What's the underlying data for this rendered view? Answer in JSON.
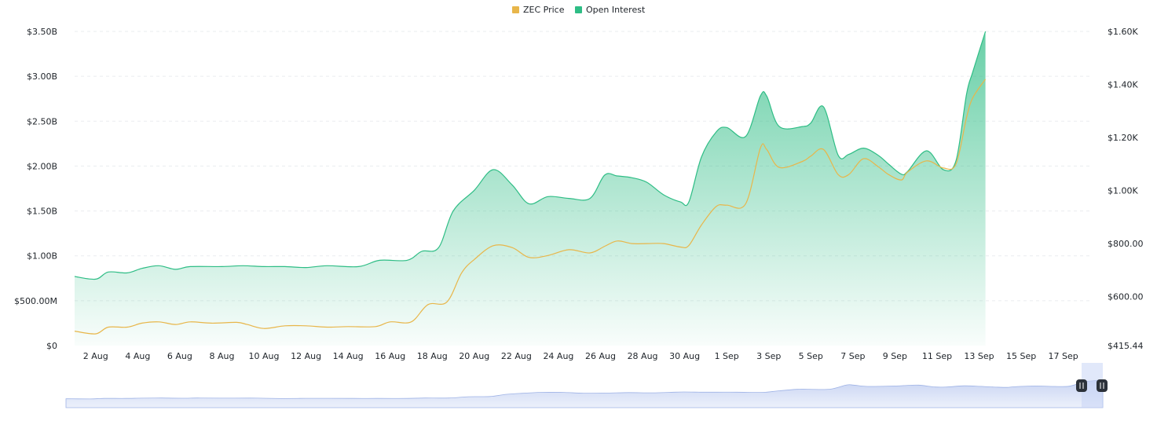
{
  "chart_data": {
    "type": "area",
    "legend": {
      "placement": "top-center",
      "items": [
        {
          "label": "ZEC Price",
          "color": "#e8b64a"
        },
        {
          "label": "Open Interest",
          "color": "#2ebd85"
        }
      ]
    },
    "x_labels": [
      "2 Aug",
      "4 Aug",
      "6 Aug",
      "8 Aug",
      "10 Aug",
      "12 Aug",
      "14 Aug",
      "16 Aug",
      "18 Aug",
      "20 Aug",
      "22 Aug",
      "24 Aug",
      "26 Aug",
      "28 Aug",
      "30 Aug",
      "1 Sep",
      "3 Sep",
      "5 Sep",
      "7 Sep",
      "9 Sep",
      "11 Sep",
      "13 Sep",
      "15 Sep",
      "17 Sep"
    ],
    "y_left": {
      "ticks": [
        "$0",
        "$500.00M",
        "$1.00B",
        "$1.50B",
        "$2.00B",
        "$2.50B",
        "$3.00B",
        "$3.50B"
      ],
      "range": [
        0,
        3.5
      ],
      "unit": "B"
    },
    "y_right": {
      "ticks": [
        "$415.44",
        "$600.00",
        "$800.00",
        "$1.00K",
        "$1.20K",
        "$1.40K",
        "$1.60K"
      ],
      "tick_values": [
        415.44,
        600,
        800,
        1000,
        1200,
        1400,
        1600
      ],
      "range": [
        415.44,
        1600
      ]
    },
    "grid": true,
    "series": [
      {
        "name": "Open Interest",
        "axis": "left",
        "color": "#2ebd85",
        "points": [
          [
            0,
            0.77
          ],
          [
            1,
            0.74
          ],
          [
            1.6,
            0.82
          ],
          [
            2.5,
            0.81
          ],
          [
            3.2,
            0.86
          ],
          [
            4,
            0.89
          ],
          [
            4.8,
            0.85
          ],
          [
            5.5,
            0.88
          ],
          [
            7,
            0.88
          ],
          [
            8,
            0.89
          ],
          [
            9,
            0.88
          ],
          [
            10,
            0.88
          ],
          [
            11,
            0.87
          ],
          [
            12,
            0.89
          ],
          [
            13.5,
            0.88
          ],
          [
            14.5,
            0.95
          ],
          [
            15.8,
            0.95
          ],
          [
            16.5,
            1.05
          ],
          [
            17.3,
            1.09
          ],
          [
            18,
            1.5
          ],
          [
            19,
            1.73
          ],
          [
            19.9,
            1.96
          ],
          [
            20.8,
            1.79
          ],
          [
            21.6,
            1.58
          ],
          [
            22.5,
            1.66
          ],
          [
            23.5,
            1.64
          ],
          [
            24.5,
            1.64
          ],
          [
            25.2,
            1.9
          ],
          [
            25.8,
            1.89
          ],
          [
            26.5,
            1.87
          ],
          [
            27.2,
            1.82
          ],
          [
            28,
            1.68
          ],
          [
            28.8,
            1.6
          ],
          [
            29.2,
            1.6
          ],
          [
            29.8,
            2.1
          ],
          [
            30.5,
            2.38
          ],
          [
            31,
            2.43
          ],
          [
            31.9,
            2.33
          ],
          [
            32.6,
            2.78
          ],
          [
            32.9,
            2.78
          ],
          [
            33.5,
            2.44
          ],
          [
            34.6,
            2.44
          ],
          [
            35,
            2.48
          ],
          [
            35.6,
            2.66
          ],
          [
            36.3,
            2.12
          ],
          [
            36.8,
            2.13
          ],
          [
            37.5,
            2.2
          ],
          [
            38.2,
            2.12
          ],
          [
            38.7,
            2.02
          ],
          [
            39.3,
            1.91
          ],
          [
            39.6,
            1.94
          ],
          [
            40.5,
            2.17
          ],
          [
            41.3,
            1.96
          ],
          [
            41.9,
            2.06
          ],
          [
            42.4,
            2.8
          ],
          [
            42.7,
            3.05
          ],
          [
            43.3,
            3.5
          ]
        ]
      },
      {
        "name": "ZEC Price",
        "axis": "right",
        "color": "#e8b64a",
        "points": [
          [
            0,
            470
          ],
          [
            1,
            460
          ],
          [
            1.6,
            485
          ],
          [
            2.5,
            485
          ],
          [
            3.2,
            500
          ],
          [
            4,
            505
          ],
          [
            4.8,
            495
          ],
          [
            5.5,
            505
          ],
          [
            6.5,
            500
          ],
          [
            7.7,
            503
          ],
          [
            8.2,
            495
          ],
          [
            9,
            480
          ],
          [
            10,
            490
          ],
          [
            11,
            490
          ],
          [
            12,
            485
          ],
          [
            13,
            487
          ],
          [
            14.3,
            487
          ],
          [
            15,
            505
          ],
          [
            16,
            505
          ],
          [
            16.8,
            570
          ],
          [
            17.7,
            580
          ],
          [
            18.4,
            690
          ],
          [
            19,
            740
          ],
          [
            19.9,
            792
          ],
          [
            20.8,
            785
          ],
          [
            21.6,
            748
          ],
          [
            22.5,
            755
          ],
          [
            23.5,
            777
          ],
          [
            24.5,
            765
          ],
          [
            25.2,
            790
          ],
          [
            25.8,
            810
          ],
          [
            26.5,
            800
          ],
          [
            27.2,
            800
          ],
          [
            28,
            800
          ],
          [
            28.8,
            787
          ],
          [
            29.2,
            793
          ],
          [
            29.8,
            870
          ],
          [
            30.5,
            940
          ],
          [
            31,
            945
          ],
          [
            31.9,
            950
          ],
          [
            32.6,
            1160
          ],
          [
            32.9,
            1155
          ],
          [
            33.5,
            1087
          ],
          [
            34.6,
            1110
          ],
          [
            35,
            1130
          ],
          [
            35.6,
            1155
          ],
          [
            36.3,
            1060
          ],
          [
            36.8,
            1060
          ],
          [
            37.5,
            1120
          ],
          [
            38.2,
            1090
          ],
          [
            38.7,
            1060
          ],
          [
            39.3,
            1040
          ],
          [
            39.6,
            1070
          ],
          [
            40.5,
            1112
          ],
          [
            41.3,
            1085
          ],
          [
            41.9,
            1100
          ],
          [
            42.4,
            1275
          ],
          [
            42.7,
            1350
          ],
          [
            43.3,
            1420
          ]
        ]
      }
    ],
    "navigator": {
      "handles": [
        "pause-icon",
        "pause-icon"
      ]
    }
  }
}
